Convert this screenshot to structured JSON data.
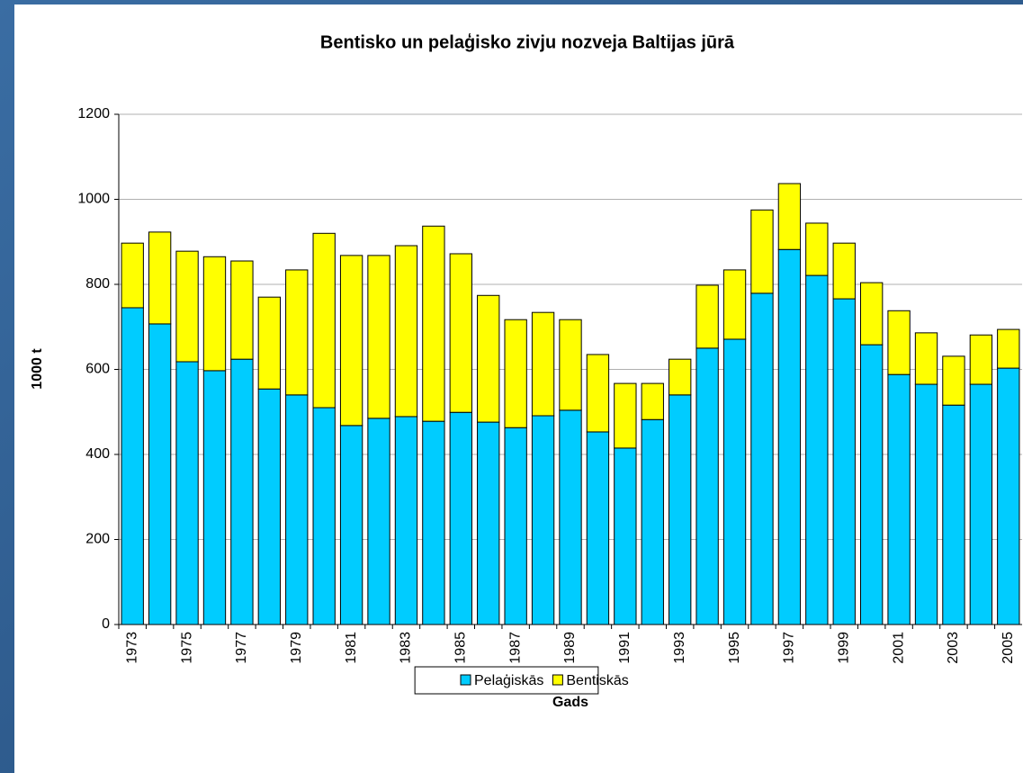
{
  "chart_data": {
    "type": "stacked_bar",
    "title": "Bentisko un pelaģisko zivju nozveja Baltijas jūrā",
    "x_label": "Gads",
    "y_label": "1000 t",
    "categories": [
      "1973",
      null,
      "1975",
      null,
      "1977",
      null,
      "1979",
      null,
      "1981",
      null,
      "1983",
      null,
      "1985",
      null,
      "1987",
      null,
      "1989",
      null,
      "1991",
      null,
      "1993",
      null,
      "1995",
      null,
      "1997",
      null,
      "1999",
      null,
      "2001",
      null,
      "2003",
      null,
      "2005"
    ],
    "series": [
      {
        "name": "Pelaģiskās",
        "color": "#00ccff",
        "values": [
          745,
          707,
          618,
          597,
          624,
          554,
          540,
          510,
          468,
          485,
          489,
          478,
          499,
          476,
          463,
          491,
          504,
          453,
          415,
          482,
          540,
          650,
          671,
          779,
          882,
          821,
          766,
          658,
          588,
          565,
          516,
          565,
          603
        ]
      },
      {
        "name": "Bentiskās",
        "color": "#ffff00",
        "values": [
          152,
          216,
          260,
          268,
          231,
          216,
          294,
          410,
          400,
          383,
          402,
          459,
          373,
          298,
          254,
          243,
          213,
          182,
          152,
          85,
          84,
          148,
          163,
          196,
          155,
          123,
          131,
          146,
          150,
          121,
          115,
          116,
          91
        ]
      }
    ],
    "ylim": [
      0,
      1200
    ],
    "yticks": [
      0,
      200,
      400,
      600,
      800,
      1000,
      1200
    ],
    "grid": true,
    "legend": "bottom"
  }
}
